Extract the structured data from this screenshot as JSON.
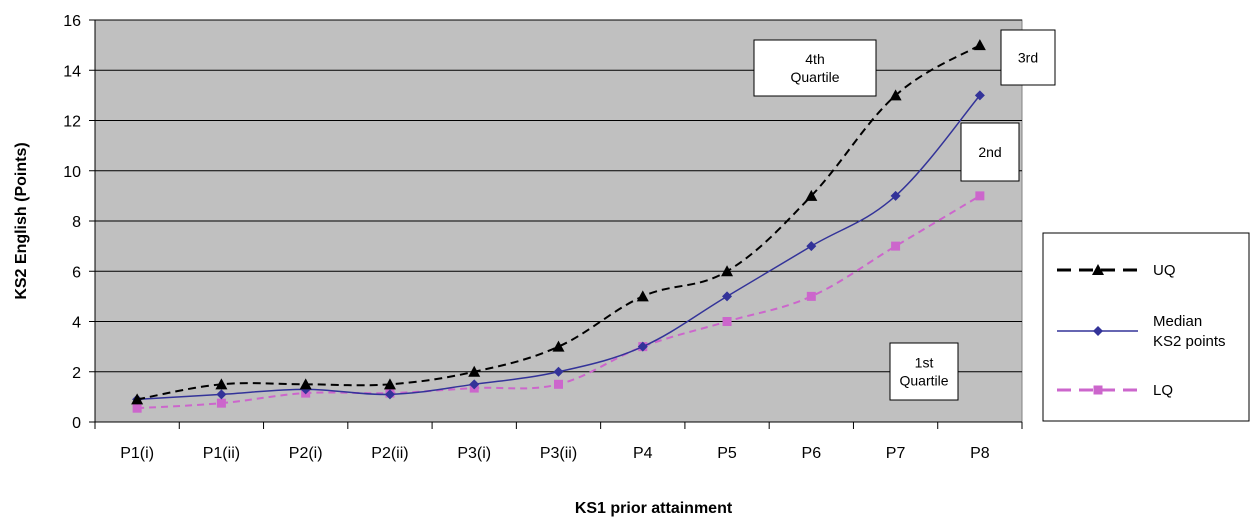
{
  "chart_data": {
    "type": "line",
    "title": "",
    "xlabel": "KS1 prior attainment",
    "ylabel": "KS2 English (Points)",
    "categories": [
      "P1(i)",
      "P1(ii)",
      "P2(i)",
      "P2(ii)",
      "P3(i)",
      "P3(ii)",
      "P4",
      "P5",
      "P6",
      "P7",
      "P8"
    ],
    "ylim": [
      0,
      16
    ],
    "yticks": [
      "0",
      "2",
      "4",
      "6",
      "8",
      "10",
      "12",
      "14",
      "16"
    ],
    "grid": true,
    "legend_position": "right",
    "series": [
      {
        "name": "UQ",
        "values": [
          0.9,
          1.5,
          1.5,
          1.5,
          2,
          3,
          5,
          6,
          9,
          13,
          15
        ],
        "color": "#000000",
        "marker": "triangle",
        "dash": "dashed"
      },
      {
        "name": "Median KS2 points",
        "legend_lines": [
          "Median",
          "KS2 points"
        ],
        "values": [
          0.9,
          1.1,
          1.3,
          1.1,
          1.5,
          2,
          3,
          5,
          7,
          9,
          13
        ],
        "color": "#333399",
        "marker": "diamond",
        "dash": "solid"
      },
      {
        "name": "LQ",
        "values": [
          0.55,
          0.75,
          1.15,
          1.15,
          1.35,
          1.5,
          3,
          4,
          5,
          7,
          9
        ],
        "color": "#cc66cc",
        "marker": "square",
        "dash": "dashed"
      }
    ],
    "annotations": [
      {
        "id": "q4",
        "lines": [
          "4th",
          "Quartile"
        ]
      },
      {
        "id": "q3",
        "lines": [
          "3rd"
        ]
      },
      {
        "id": "q2",
        "lines": [
          "2nd"
        ]
      },
      {
        "id": "q1",
        "lines": [
          "1st",
          "Quartile"
        ]
      }
    ],
    "colors": {
      "plot_background": "#c0c0c0",
      "gridline": "#000000"
    }
  }
}
